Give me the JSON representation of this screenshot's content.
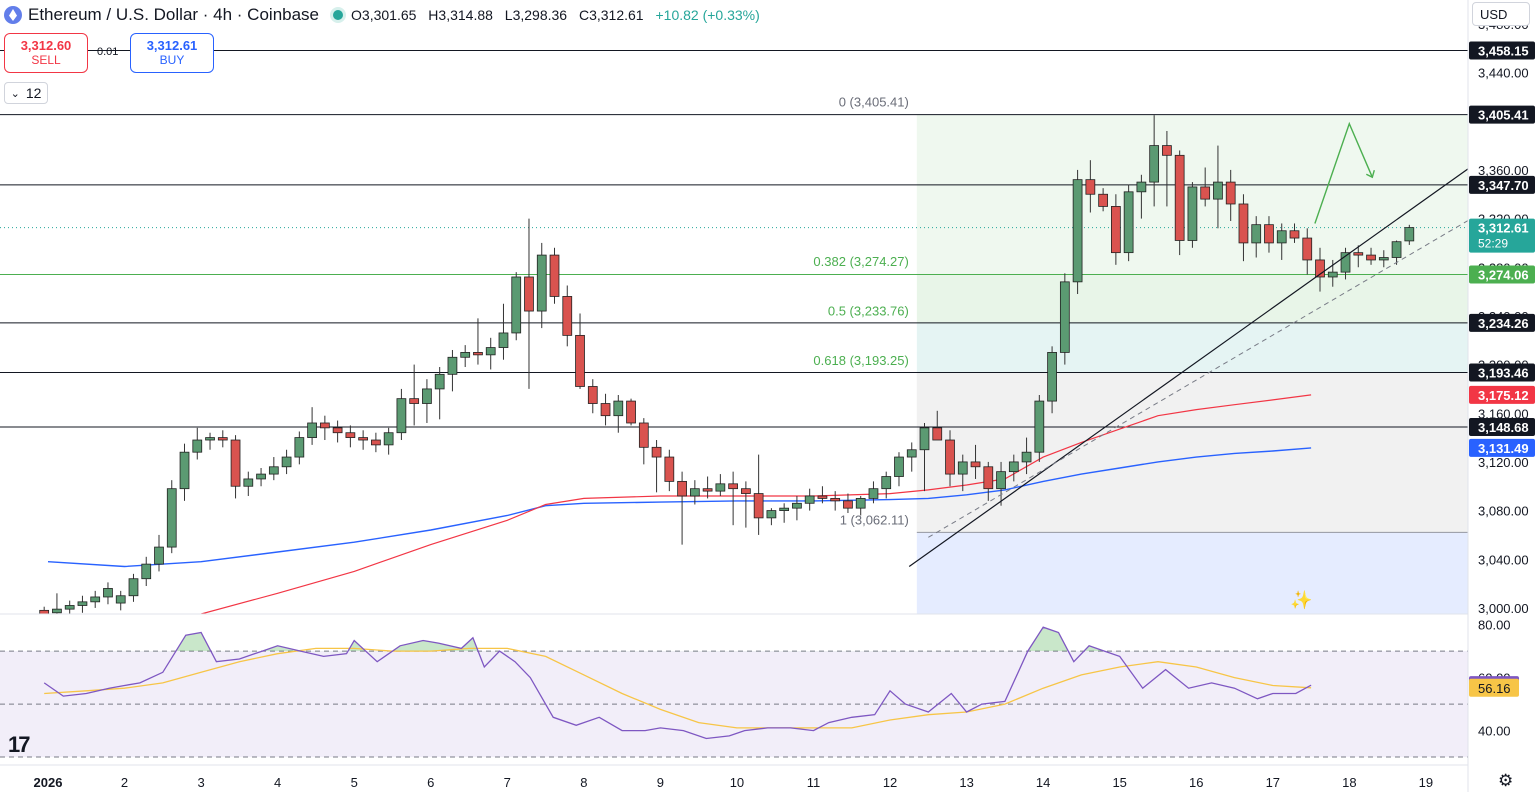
{
  "header": {
    "title": "Ethereum / U.S. Dollar · 4h · Coinbase",
    "open": "O3,301.65",
    "high": "H3,314.88",
    "low": "L3,298.36",
    "close": "C3,312.61",
    "change": "+10.82 (+0.33%)"
  },
  "trade": {
    "sell_price": "3,312.60",
    "sell_label": "SELL",
    "spread": "0.01",
    "buy_price": "3,312.61",
    "buy_label": "BUY"
  },
  "indicators_count": "12",
  "currency": "USD",
  "logo_text": "17",
  "icons": [
    "eth-logo-icon",
    "market-open-dot-icon",
    "chevron-down-icon",
    "tradingview-logo-icon",
    "settings-gear-icon",
    "magic-wand-icon"
  ],
  "colors": {
    "up": "#26a69a",
    "down": "#f23645",
    "ema_fast": "#f23645",
    "ema_slow": "#2962ff",
    "rsi": "#7e57c2",
    "rsi_ma": "#f7c547",
    "fib_line": "#4caf50",
    "projection": "#4caf50"
  },
  "chart_data": [
    {
      "type": "candlestick",
      "ylim": [
        2995,
        3475
      ],
      "y_ticks": [
        "3,480.00",
        "3,440.00",
        "3,360.00",
        "3,320.00",
        "3,280.00",
        "3,240.00",
        "3,200.00",
        "3,160.00",
        "3,120.00",
        "3,080.00",
        "3,040.00",
        "3,000.00"
      ],
      "x_ticks": [
        {
          "label": "2026",
          "day": 1
        },
        {
          "label": "2",
          "day": 2
        },
        {
          "label": "3",
          "day": 3
        },
        {
          "label": "4",
          "day": 4
        },
        {
          "label": "5",
          "day": 5
        },
        {
          "label": "6",
          "day": 6
        },
        {
          "label": "7",
          "day": 7
        },
        {
          "label": "8",
          "day": 8
        },
        {
          "label": "9",
          "day": 9
        },
        {
          "label": "10",
          "day": 10
        },
        {
          "label": "11",
          "day": 11
        },
        {
          "label": "12",
          "day": 12
        },
        {
          "label": "13",
          "day": 13
        },
        {
          "label": "14",
          "day": 14
        },
        {
          "label": "15",
          "day": 15
        },
        {
          "label": "16",
          "day": 16
        },
        {
          "label": "17",
          "day": 17
        },
        {
          "label": "18",
          "day": 18
        },
        {
          "label": "19",
          "day": 19
        }
      ],
      "candles_per_day": 6,
      "first_candle_day": 0.95,
      "candles": [
        [
          2998,
          3001,
          2990,
          2994
        ],
        [
          2996,
          3012,
          2985,
          2999
        ],
        [
          2999,
          3006,
          2990,
          3002
        ],
        [
          3002,
          3010,
          2996,
          3005
        ],
        [
          3005,
          3014,
          3000,
          3009
        ],
        [
          3009,
          3021,
          3003,
          3016
        ],
        [
          3004,
          3014,
          2998,
          3010
        ],
        [
          3010,
          3028,
          3005,
          3024
        ],
        [
          3024,
          3042,
          3018,
          3036
        ],
        [
          3036,
          3060,
          3030,
          3050
        ],
        [
          3050,
          3105,
          3045,
          3098
        ],
        [
          3098,
          3135,
          3088,
          3128
        ],
        [
          3128,
          3148,
          3122,
          3138
        ],
        [
          3138,
          3144,
          3130,
          3140
        ],
        [
          3140,
          3146,
          3132,
          3138
        ],
        [
          3138,
          3142,
          3090,
          3100
        ],
        [
          3100,
          3112,
          3092,
          3106
        ],
        [
          3106,
          3115,
          3100,
          3110
        ],
        [
          3110,
          3124,
          3105,
          3116
        ],
        [
          3116,
          3130,
          3110,
          3124
        ],
        [
          3124,
          3145,
          3118,
          3140
        ],
        [
          3140,
          3165,
          3134,
          3152
        ],
        [
          3152,
          3158,
          3138,
          3148
        ],
        [
          3148,
          3154,
          3136,
          3144
        ],
        [
          3144,
          3150,
          3132,
          3140
        ],
        [
          3140,
          3146,
          3130,
          3138
        ],
        [
          3138,
          3144,
          3128,
          3134
        ],
        [
          3134,
          3148,
          3126,
          3144
        ],
        [
          3144,
          3180,
          3138,
          3172
        ],
        [
          3172,
          3200,
          3150,
          3168
        ],
        [
          3168,
          3188,
          3152,
          3180
        ],
        [
          3180,
          3198,
          3155,
          3192
        ],
        [
          3192,
          3212,
          3178,
          3206
        ],
        [
          3206,
          3216,
          3198,
          3210
        ],
        [
          3210,
          3238,
          3200,
          3208
        ],
        [
          3208,
          3222,
          3196,
          3214
        ],
        [
          3214,
          3250,
          3204,
          3226
        ],
        [
          3226,
          3276,
          3220,
          3272
        ],
        [
          3272,
          3320,
          3180,
          3244
        ],
        [
          3244,
          3300,
          3230,
          3290
        ],
        [
          3290,
          3296,
          3250,
          3256
        ],
        [
          3256,
          3265,
          3215,
          3224
        ],
        [
          3224,
          3242,
          3180,
          3182
        ],
        [
          3182,
          3188,
          3160,
          3168
        ],
        [
          3168,
          3176,
          3150,
          3158
        ],
        [
          3158,
          3175,
          3144,
          3170
        ],
        [
          3170,
          3172,
          3150,
          3152
        ],
        [
          3152,
          3156,
          3118,
          3132
        ],
        [
          3132,
          3138,
          3095,
          3124
        ],
        [
          3124,
          3130,
          3096,
          3104
        ],
        [
          3104,
          3112,
          3052,
          3092
        ],
        [
          3092,
          3105,
          3085,
          3098
        ],
        [
          3098,
          3108,
          3090,
          3096
        ],
        [
          3096,
          3110,
          3092,
          3102
        ],
        [
          3102,
          3112,
          3068,
          3098
        ],
        [
          3098,
          3104,
          3066,
          3094
        ],
        [
          3094,
          3126,
          3060,
          3074
        ],
        [
          3074,
          3082,
          3068,
          3080
        ],
        [
          3080,
          3086,
          3070,
          3082
        ],
        [
          3082,
          3092,
          3072,
          3086
        ],
        [
          3086,
          3098,
          3080,
          3092
        ],
        [
          3092,
          3100,
          3086,
          3090
        ],
        [
          3090,
          3096,
          3080,
          3088
        ],
        [
          3088,
          3094,
          3078,
          3082
        ],
        [
          3082,
          3092,
          3076,
          3090
        ],
        [
          3090,
          3104,
          3086,
          3098
        ],
        [
          3098,
          3112,
          3090,
          3108
        ],
        [
          3108,
          3128,
          3100,
          3124
        ],
        [
          3124,
          3136,
          3112,
          3130
        ],
        [
          3130,
          3152,
          3096,
          3148
        ],
        [
          3148,
          3162,
          3140,
          3138
        ],
        [
          3138,
          3146,
          3100,
          3110
        ],
        [
          3110,
          3126,
          3096,
          3120
        ],
        [
          3120,
          3134,
          3106,
          3116
        ],
        [
          3116,
          3120,
          3088,
          3098
        ],
        [
          3098,
          3120,
          3084,
          3112
        ],
        [
          3112,
          3126,
          3104,
          3120
        ],
        [
          3120,
          3140,
          3110,
          3128
        ],
        [
          3128,
          3175,
          3120,
          3170
        ],
        [
          3170,
          3215,
          3160,
          3210
        ],
        [
          3210,
          3275,
          3200,
          3268
        ],
        [
          3268,
          3360,
          3258,
          3352
        ],
        [
          3352,
          3368,
          3325,
          3340
        ],
        [
          3340,
          3345,
          3326,
          3330
        ],
        [
          3330,
          3340,
          3282,
          3292
        ],
        [
          3292,
          3348,
          3285,
          3342
        ],
        [
          3342,
          3356,
          3320,
          3350
        ],
        [
          3350,
          3405,
          3330,
          3380
        ],
        [
          3380,
          3392,
          3330,
          3372
        ],
        [
          3372,
          3376,
          3290,
          3302
        ],
        [
          3302,
          3350,
          3296,
          3346
        ],
        [
          3346,
          3362,
          3330,
          3336
        ],
        [
          3336,
          3380,
          3312,
          3350
        ],
        [
          3350,
          3360,
          3318,
          3332
        ],
        [
          3332,
          3340,
          3285,
          3300
        ],
        [
          3300,
          3322,
          3288,
          3315
        ],
        [
          3315,
          3322,
          3292,
          3300
        ],
        [
          3300,
          3316,
          3286,
          3310
        ],
        [
          3310,
          3316,
          3300,
          3304
        ],
        [
          3304,
          3312,
          3274,
          3286
        ],
        [
          3286,
          3296,
          3260,
          3272
        ],
        [
          3272,
          3286,
          3264,
          3276
        ],
        [
          3276,
          3296,
          3270,
          3292
        ],
        [
          3292,
          3298,
          3280,
          3290
        ],
        [
          3290,
          3296,
          3282,
          3286
        ],
        [
          3286,
          3294,
          3280,
          3288
        ],
        [
          3288,
          3302,
          3282,
          3301
        ],
        [
          3301.65,
          3314.88,
          3298.36,
          3312.61
        ]
      ],
      "ema_fast": {
        "x_day": [
          1,
          2,
          3,
          4,
          5,
          6,
          7,
          7.5,
          8,
          9,
          10,
          11,
          12,
          12.5,
          13,
          13.5,
          14,
          14.5,
          15,
          15.5,
          16,
          16.5,
          17,
          17.5
        ],
        "y": [
          2970,
          2980,
          2995,
          3012,
          3030,
          3052,
          3072,
          3085,
          3090,
          3092,
          3092,
          3092,
          3094,
          3097,
          3101,
          3106,
          3124,
          3136,
          3147,
          3158,
          3163,
          3167,
          3171,
          3175.12
        ]
      },
      "ema_slow": {
        "x_day": [
          1,
          2,
          3,
          4,
          5,
          6,
          7,
          7.5,
          8,
          9,
          10,
          11,
          12,
          12.5,
          13,
          13.5,
          14,
          14.5,
          15,
          15.5,
          16,
          16.5,
          17,
          17.5
        ],
        "y": [
          3038,
          3034,
          3038,
          3046,
          3054,
          3064,
          3076,
          3084,
          3086,
          3087,
          3088,
          3088,
          3089,
          3090,
          3093,
          3097,
          3104,
          3110,
          3115,
          3120,
          3124,
          3127,
          3129,
          3131.49
        ]
      },
      "horizontal_levels": [
        "3,458.15",
        "3,405.41",
        "3,347.70",
        "3,274.06",
        "3,234.26",
        "3,193.46",
        "3,148.68"
      ],
      "horizontal_level_values": [
        3458.15,
        3405.41,
        3347.7,
        3274.06,
        3234.26,
        3193.46,
        3148.68
      ],
      "fib_levels": [
        {
          "label": "0 (3,405.41)",
          "value": 3405.41
        },
        {
          "label": "0.382 (3,274.27)",
          "value": 3274.27
        },
        {
          "label": "0.5 (3,233.76)",
          "value": 3233.76
        },
        {
          "label": "0.618 (3,193.25)",
          "value": 3193.25
        },
        {
          "label": "1 (3,062.11)",
          "value": 3062.11
        }
      ],
      "fib_start_day": 12.35,
      "fib_end_day": 20.0,
      "trendline": {
        "x_day": [
          12.25,
          20.0
        ],
        "y": [
          3034,
          3381
        ]
      },
      "dashed_trendline": {
        "x_day": [
          12.5,
          20.0
        ],
        "y": [
          3058,
          3335
        ]
      },
      "projection": {
        "x_day": [
          17.55,
          18.0,
          18.3
        ],
        "y": [
          3316,
          3398,
          3354
        ]
      },
      "current_price": 3312.61,
      "price_tags": [
        {
          "label": "3,458.15",
          "value": 3458.15,
          "color": "#131722"
        },
        {
          "label": "3,405.41",
          "value": 3405.41,
          "color": "#131722"
        },
        {
          "label": "3,347.70",
          "value": 3347.7,
          "color": "#131722"
        },
        {
          "label": "3,312.61",
          "value": 3312.61,
          "color": "#26a69a",
          "sub": "52:29"
        },
        {
          "label": "3,274.06",
          "value": 3274.06,
          "color": "#4caf50"
        },
        {
          "label": "3,234.26",
          "value": 3234.26,
          "color": "#131722"
        },
        {
          "label": "3,193.46",
          "value": 3193.46,
          "color": "#131722"
        },
        {
          "label": "3,175.12",
          "value": 3175.12,
          "color": "#f23645"
        },
        {
          "label": "3,148.68",
          "value": 3148.68,
          "color": "#131722"
        },
        {
          "label": "3,131.49",
          "value": 3131.49,
          "color": "#2962ff"
        }
      ]
    },
    {
      "type": "line",
      "ylim": [
        27,
        84
      ],
      "y_ticks": [
        "80.00",
        "60.00",
        "40.00"
      ],
      "bands": [
        70,
        50,
        30
      ],
      "rsi": {
        "x_day": [
          0.95,
          1.2,
          1.5,
          1.8,
          2.0,
          2.2,
          2.5,
          2.8,
          3.0,
          3.2,
          3.5,
          3.8,
          4.0,
          4.3,
          4.6,
          4.9,
          5.0,
          5.3,
          5.6,
          5.9,
          6.1,
          6.4,
          6.55,
          6.7,
          6.9,
          7.1,
          7.3,
          7.6,
          7.9,
          8.2,
          8.5,
          8.8,
          9.0,
          9.3,
          9.6,
          9.9,
          10.1,
          10.4,
          10.7,
          11.0,
          11.2,
          11.5,
          11.8,
          12.0,
          12.2,
          12.5,
          12.8,
          13.0,
          13.2,
          13.5,
          13.8,
          14.0,
          14.2,
          14.4,
          14.6,
          14.8,
          15.0,
          15.3,
          15.6,
          15.9,
          16.2,
          16.5,
          16.8,
          17.0,
          17.3,
          17.5
        ],
        "y": [
          58,
          53,
          54,
          56,
          57,
          58,
          62,
          76,
          77,
          66,
          67,
          70,
          72,
          70,
          68,
          69,
          74,
          66,
          72,
          74,
          73,
          71,
          75,
          64,
          70,
          66,
          60,
          45,
          42,
          45,
          40,
          40,
          41,
          40,
          37,
          38,
          40,
          41,
          41,
          40,
          43,
          45,
          46,
          55,
          50,
          47,
          54,
          47,
          50,
          51,
          70,
          79,
          77,
          66,
          72,
          70,
          68,
          56,
          63,
          56,
          58,
          56,
          52,
          54,
          54,
          57.14
        ]
      },
      "rsi_ma": {
        "x_day": [
          0.95,
          1.5,
          2.0,
          2.5,
          3.0,
          3.5,
          4.0,
          4.5,
          5.0,
          5.5,
          6.0,
          6.5,
          7.0,
          7.5,
          8.0,
          8.5,
          9.0,
          9.5,
          10.0,
          10.5,
          11.0,
          11.5,
          12.0,
          12.5,
          13.0,
          13.5,
          14.0,
          14.5,
          15.0,
          15.5,
          16.0,
          16.5,
          17.0,
          17.5
        ],
        "y": [
          54,
          55,
          56,
          58,
          62,
          66,
          69,
          71,
          71,
          70,
          70,
          71,
          71,
          68,
          61,
          54,
          48,
          43,
          41,
          41,
          41,
          41,
          44,
          46,
          47,
          50,
          56,
          61,
          64,
          66,
          64,
          60,
          57,
          56.16
        ]
      },
      "value_tags": [
        {
          "label": "57.14",
          "value": 57.14,
          "color": "#7e57c2"
        },
        {
          "label": "56.16",
          "value": 56.16,
          "color": "#f7c547"
        }
      ]
    }
  ]
}
